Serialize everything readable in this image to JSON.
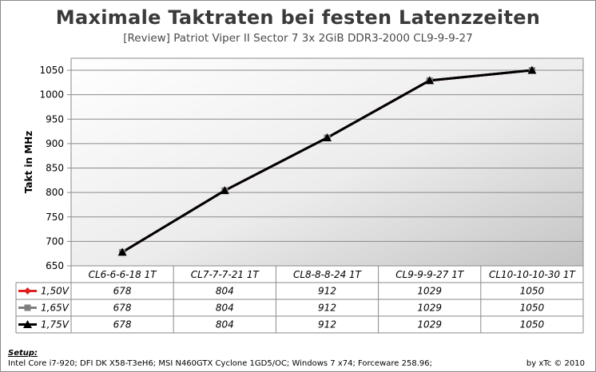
{
  "title": "Maximale Taktraten bei festen Latenzzeiten",
  "subtitle": "[Review] Patriot Viper II Sector 7 3x 2GiB DDR3-2000 CL9-9-9-27",
  "footer": {
    "setup_label": "Setup:",
    "setup_text": "Intel Core i7-920; DFI DK X58-T3eH6; MSI N460GTX Cyclone 1GD5/OC; Windows 7 x74; Forceware 258.96;",
    "credit": "by xTc © 2010"
  },
  "chart_data": {
    "type": "line",
    "title": "Maximale Taktraten bei festen Latenzzeiten",
    "subtitle": "[Review] Patriot Viper II Sector 7 3x 2GiB DDR3-2000 CL9-9-9-27",
    "xlabel": "",
    "ylabel": "Takt in MHz",
    "ylim": [
      650,
      1050
    ],
    "yticks": [
      650,
      700,
      750,
      800,
      850,
      900,
      950,
      1000,
      1050
    ],
    "grid": true,
    "legend_position": "data table (left column)",
    "categories": [
      "CL6-6-6-18 1T",
      "CL7-7-7-21 1T",
      "CL8-8-8-24 1T",
      "CL9-9-9-27 1T",
      "CL10-10-10-30 1T"
    ],
    "series": [
      {
        "name": "1,50V",
        "color": "#e02020",
        "marker": "diamond",
        "values": [
          678,
          804,
          912,
          1029,
          1050
        ]
      },
      {
        "name": "1,65V",
        "color": "#808080",
        "marker": "square",
        "values": [
          678,
          804,
          912,
          1029,
          1050
        ]
      },
      {
        "name": "1,75V",
        "color": "#000000",
        "marker": "triangle",
        "values": [
          678,
          804,
          912,
          1029,
          1050
        ]
      }
    ],
    "table": {
      "rows": [
        [
          "678",
          "804",
          "912",
          "1029",
          "1050"
        ],
        [
          "678",
          "804",
          "912",
          "1029",
          "1050"
        ],
        [
          "678",
          "804",
          "912",
          "1029",
          "1050"
        ]
      ]
    }
  }
}
